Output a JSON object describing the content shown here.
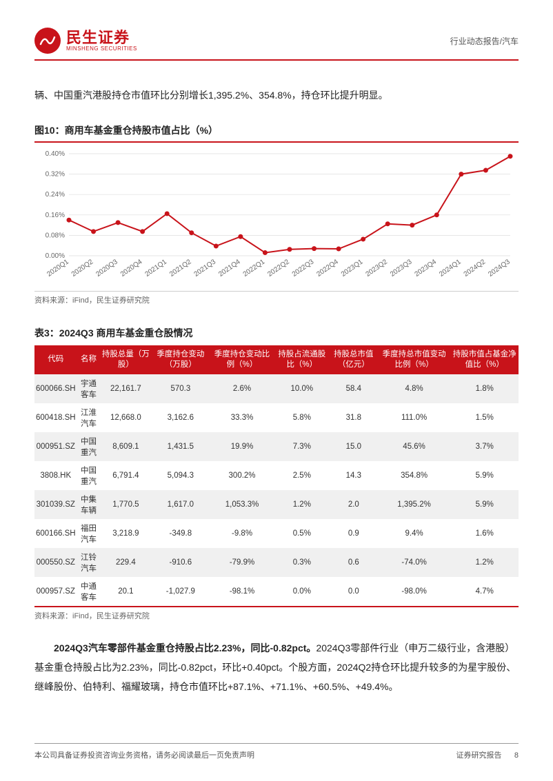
{
  "header": {
    "logo_cn": "民生证券",
    "logo_en": "MINSHENG SECURITIES",
    "category": "行业动态报告/汽车"
  },
  "top_text": "辆、中国重汽港股持仓市值环比分别增长1,395.2%、354.8%，持仓环比提升明显。",
  "figure10": {
    "caption": "图10：商用车基金重仓持股市值占比（%）",
    "source": "资料来源：iFind，民生证券研究院",
    "chart": {
      "type": "line",
      "categories": [
        "2020Q1",
        "2020Q2",
        "2020Q3",
        "2020Q4",
        "2021Q1",
        "2021Q2",
        "2021Q3",
        "2021Q4",
        "2022Q1",
        "2022Q2",
        "2022Q3",
        "2022Q4",
        "2023Q1",
        "2023Q2",
        "2023Q3",
        "2023Q4",
        "2024Q1",
        "2024Q2",
        "2024Q3"
      ],
      "values": [
        0.14,
        0.095,
        0.13,
        0.095,
        0.165,
        0.09,
        0.038,
        0.075,
        0.012,
        0.025,
        0.028,
        0.027,
        0.065,
        0.125,
        0.12,
        0.16,
        0.32,
        0.335,
        0.39
      ],
      "ylim": [
        0,
        0.4
      ],
      "ytick_step": 0.08,
      "ytick_labels": [
        "0.00%",
        "0.08%",
        "0.16%",
        "0.24%",
        "0.32%",
        "0.40%"
      ],
      "line_color": "#c8131a",
      "marker": "circle",
      "marker_size": 3.5,
      "background_color": "#ffffff",
      "grid_color": "#dddddd",
      "label_fontsize": 10
    }
  },
  "table3": {
    "caption": "表3：2024Q3 商用车基金重仓股情况",
    "source": "资料来源：iFind，民生证券研究院",
    "columns": [
      "代码",
      "名称",
      "持股总量（万股）",
      "季度持仓变动（万股）",
      "季度持仓变动比例（%）",
      "持股占流通股比（%）",
      "持股总市值（亿元）",
      "季度持总市值变动比例（%）",
      "持股市值占基金净值比（%）"
    ],
    "rows": [
      [
        "600066.SH",
        "宇通客车",
        "22,161.7",
        "570.3",
        "2.6%",
        "10.0%",
        "58.4",
        "4.8%",
        "1.8%"
      ],
      [
        "600418.SH",
        "江淮汽车",
        "12,668.0",
        "3,162.6",
        "33.3%",
        "5.8%",
        "31.8",
        "111.0%",
        "1.5%"
      ],
      [
        "000951.SZ",
        "中国重汽",
        "8,609.1",
        "1,431.5",
        "19.9%",
        "7.3%",
        "15.0",
        "45.6%",
        "3.7%"
      ],
      [
        "3808.HK",
        "中国重汽",
        "6,791.4",
        "5,094.3",
        "300.2%",
        "2.5%",
        "14.3",
        "354.8%",
        "5.9%"
      ],
      [
        "301039.SZ",
        "中集车辆",
        "1,770.5",
        "1,617.0",
        "1,053.3%",
        "1.2%",
        "2.0",
        "1,395.2%",
        "5.9%"
      ],
      [
        "600166.SH",
        "福田汽车",
        "3,218.9",
        "-349.8",
        "-9.8%",
        "0.5%",
        "0.9",
        "9.4%",
        "1.6%"
      ],
      [
        "000550.SZ",
        "江铃汽车",
        "229.4",
        "-910.6",
        "-79.9%",
        "0.3%",
        "0.6",
        "-74.0%",
        "1.2%"
      ],
      [
        "000957.SZ",
        "中通客车",
        "20.1",
        "-1,027.9",
        "-98.1%",
        "0.0%",
        "0.0",
        "-98.0%",
        "4.7%"
      ]
    ],
    "header_bg": "#c8131a",
    "header_color": "#ffffff",
    "row_alt_bg": "#f0f0f0"
  },
  "paragraph": {
    "bold": "2024Q3汽车零部件基金重仓持股占比2.23%，同比-0.82pct。",
    "rest": "2024Q3零部件行业（申万二级行业，含港股）基金重仓持股占比为2.23%，同比-0.82pct，环比+0.40pct。个股方面，2024Q2持仓环比提升较多的为星宇股份、继峰股份、伯特利、福耀玻璃，持仓市值环比+87.1%、+71.1%、+60.5%、+49.4%。"
  },
  "footer": {
    "left": "本公司具备证券投资咨询业务资格，请务必阅读最后一页免责声明",
    "right_label": "证券研究报告",
    "page": "8"
  }
}
